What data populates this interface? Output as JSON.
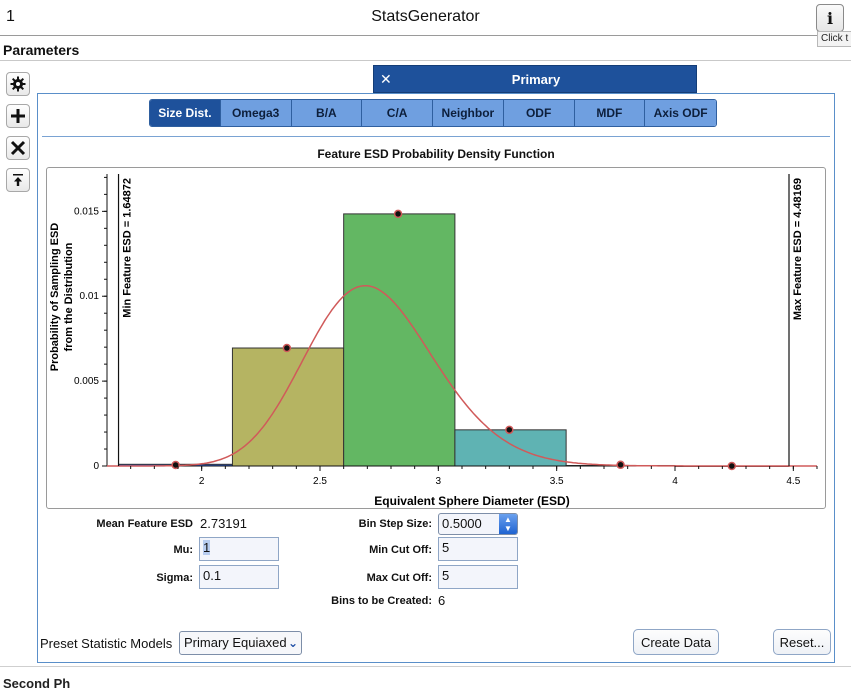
{
  "window": {
    "index": "1",
    "title": "StatsGenerator",
    "info_icon": "info-icon",
    "info_glyph": "i",
    "tooltip": "Click t"
  },
  "parameters_label": "Parameters",
  "toolbar": {
    "items": [
      {
        "name": "settings",
        "icon": "gear-icon"
      },
      {
        "name": "add",
        "icon": "plus-icon"
      },
      {
        "name": "remove",
        "icon": "x-icon"
      },
      {
        "name": "move-top",
        "icon": "arrow-up-to-line-icon"
      }
    ]
  },
  "primary_tab": {
    "close_glyph": "✕",
    "label": "Primary"
  },
  "subtabs": [
    {
      "label": "Size Dist.",
      "active": true
    },
    {
      "label": "Omega3",
      "active": false
    },
    {
      "label": "B/A",
      "active": false
    },
    {
      "label": "C/A",
      "active": false
    },
    {
      "label": "Neighbor",
      "active": false
    },
    {
      "label": "ODF",
      "active": false
    },
    {
      "label": "MDF",
      "active": false
    },
    {
      "label": "Axis ODF",
      "active": false
    }
  ],
  "chart_data": {
    "type": "bar",
    "title": "Feature ESD Probability Density Function",
    "xlabel": "Equivalent Sphere Diameter (ESD)",
    "ylabel_lines": [
      "Probability of Sampling ESD",
      "from the Distribution"
    ],
    "xlim": [
      1.6,
      4.6
    ],
    "ylim": [
      0,
      0.0172
    ],
    "x_ticks": [
      2,
      2.5,
      3,
      3.5,
      4,
      4.5
    ],
    "x_tick_labels": [
      "2",
      "2.5",
      "3",
      "3.5",
      "4",
      "4.5"
    ],
    "y_ticks": [
      0,
      0.005,
      0.01,
      0.015
    ],
    "y_tick_labels": [
      "0",
      "0.005",
      "0.01",
      "0.015"
    ],
    "bins": [
      {
        "x0": 1.64872,
        "x1": 2.13,
        "value": 0.0001,
        "color": "#2f5fd0"
      },
      {
        "x0": 2.13,
        "x1": 2.6,
        "value": 0.00695,
        "color": "#b5b462"
      },
      {
        "x0": 2.6,
        "x1": 3.07,
        "value": 0.01485,
        "color": "#63b763"
      },
      {
        "x0": 3.07,
        "x1": 3.54,
        "value": 0.00213,
        "color": "#5fb3b3"
      },
      {
        "x0": 3.54,
        "x1": 4.0,
        "value": 3e-05,
        "color": "#6aa0d8"
      },
      {
        "x0": 4.0,
        "x1": 4.48169,
        "value": 0.0,
        "color": "#6aa0d8"
      }
    ],
    "points": [
      {
        "x": 1.89,
        "y": 6e-05
      },
      {
        "x": 2.36,
        "y": 0.00695
      },
      {
        "x": 2.83,
        "y": 0.01485
      },
      {
        "x": 3.3,
        "y": 0.00213
      },
      {
        "x": 3.77,
        "y": 7e-05
      },
      {
        "x": 4.24,
        "y": 0.0
      }
    ],
    "curve": {
      "mu": 1,
      "sigma": 0.1,
      "color": "#d05a5a"
    },
    "min_line": {
      "x": 1.64872,
      "label": "Min Feature ESD = 1.64872"
    },
    "max_line": {
      "x": 4.48169,
      "label": "Max Feature ESD = 4.48169"
    }
  },
  "form": {
    "mean_label": "Mean Feature ESD",
    "mean_value": "2.73191",
    "mu_label": "Mu:",
    "mu_value": "1",
    "sigma_label": "Sigma:",
    "sigma_value": "0.1",
    "binstep_label": "Bin Step Size:",
    "binstep_value": "0.5000",
    "mincut_label": "Min Cut Off:",
    "mincut_value": "5",
    "maxcut_label": "Max Cut Off:",
    "maxcut_value": "5",
    "bins_label": "Bins to be Created:",
    "bins_value": "6"
  },
  "preset": {
    "label": "Preset Statistic Models",
    "selected": "Primary Equiaxed"
  },
  "buttons": {
    "create": "Create Data",
    "reset": "Reset..."
  },
  "footer_label": "Second Ph"
}
